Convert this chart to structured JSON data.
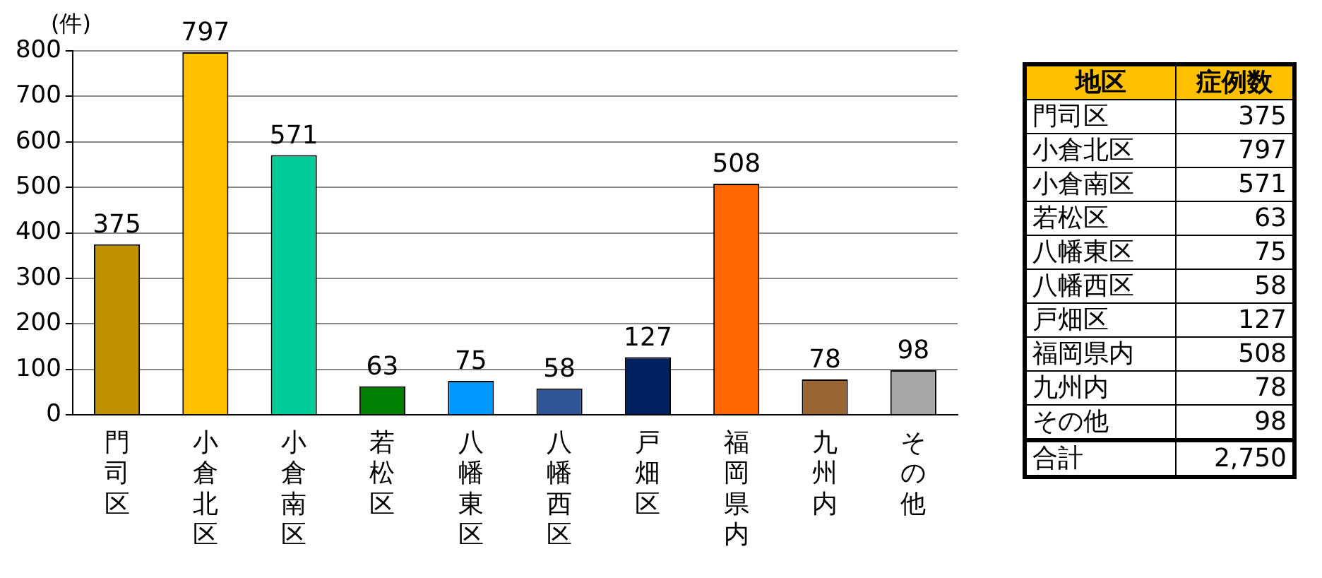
{
  "chart_data": {
    "type": "bar",
    "ylabel": "(件)",
    "categories": [
      "門司区",
      "小倉北区",
      "小倉南区",
      "若松区",
      "八幡東区",
      "八幡西区",
      "戸畑区",
      "福岡県内",
      "九州内",
      "その他"
    ],
    "values": [
      375,
      797,
      571,
      63,
      75,
      58,
      127,
      508,
      78,
      98
    ],
    "colors": [
      "#bf9000",
      "#ffc000",
      "#00cc99",
      "#008000",
      "#0099ff",
      "#2f5597",
      "#002060",
      "#ff6600",
      "#996633",
      "#a6a6a6"
    ],
    "ylim": [
      0,
      800
    ],
    "yticks": [
      0,
      100,
      200,
      300,
      400,
      500,
      600,
      700,
      800
    ],
    "grid": "y",
    "data_labels": true,
    "annotations": [
      "地区",
      "症例数",
      "合計",
      "2,750",
      "375",
      "797",
      "571",
      "63",
      "75",
      "58",
      "127",
      "508",
      "78",
      "98"
    ]
  }
}
